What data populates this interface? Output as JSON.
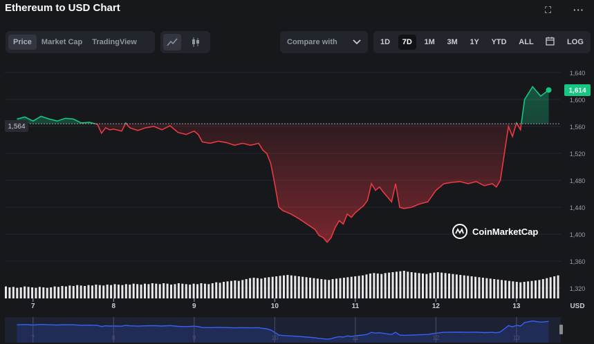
{
  "header": {
    "title": "Ethereum to USD Chart"
  },
  "toolbar": {
    "view_tabs": [
      {
        "label": "Price",
        "active": true
      },
      {
        "label": "Market Cap",
        "active": false
      },
      {
        "label": "TradingView",
        "active": false
      }
    ],
    "chart_type_icons": [
      "line-chart-icon",
      "candlestick-icon"
    ],
    "compare_label": "Compare with",
    "ranges": [
      {
        "label": "1D",
        "active": false
      },
      {
        "label": "7D",
        "active": true
      },
      {
        "label": "1M",
        "active": false
      },
      {
        "label": "3M",
        "active": false
      },
      {
        "label": "1Y",
        "active": false
      },
      {
        "label": "YTD",
        "active": false
      },
      {
        "label": "ALL",
        "active": false
      }
    ],
    "log_label": "LOG",
    "icons": [
      "calendar-icon",
      "fullscreen-icon",
      "more-icon"
    ]
  },
  "watermark": "CoinMarketCap",
  "colors": {
    "up": "#16c784",
    "down": "#ea3943",
    "background": "#17181c",
    "volume": "#ffffff",
    "navigator": "#3861fb"
  },
  "chart_data": {
    "type": "line",
    "title": "Ethereum to USD Chart",
    "xlabel": "",
    "ylabel": "USD",
    "x_ticks": [
      "7",
      "8",
      "9",
      "10",
      "11",
      "12",
      "13"
    ],
    "y_ticks": [
      "1,320",
      "1,360",
      "1,400",
      "1,440",
      "1,480",
      "1,520",
      "1,560",
      "1,600",
      "1,640"
    ],
    "ylim": [
      1320,
      1640
    ],
    "baseline": 1564,
    "baseline_label": "1,564",
    "current_price": 1614,
    "current_label": "1,614",
    "unit_label": "USD",
    "grid": true,
    "series": [
      {
        "x": [
          6.8,
          6.9,
          7.0,
          7.1,
          7.2,
          7.3,
          7.4,
          7.5,
          7.6,
          7.7,
          7.8,
          7.85,
          7.9,
          7.95,
          8.0,
          8.1,
          8.15,
          8.2,
          8.3,
          8.4,
          8.5,
          8.6,
          8.7,
          8.8,
          8.9,
          9.0,
          9.05,
          9.1,
          9.2,
          9.3,
          9.4,
          9.5,
          9.6,
          9.7,
          9.8,
          9.85,
          9.9,
          9.95,
          10.0,
          10.05,
          10.1,
          10.2,
          10.3,
          10.4,
          10.5,
          10.55,
          10.6,
          10.65,
          10.7,
          10.75,
          10.8,
          10.85,
          10.9,
          10.95,
          11.0,
          11.05,
          11.1,
          11.15,
          11.2,
          11.25,
          11.3,
          11.35,
          11.4,
          11.45,
          11.5,
          11.55,
          11.6,
          11.7,
          11.8,
          11.9,
          12.0,
          12.1,
          12.2,
          12.3,
          12.4,
          12.5,
          12.6,
          12.7,
          12.75,
          12.8,
          12.85,
          12.9,
          12.95,
          13.0,
          13.05,
          13.1,
          13.2,
          13.3,
          13.4
        ],
        "y": [
          1571,
          1574,
          1568,
          1575,
          1571,
          1568,
          1572,
          1571,
          1565,
          1566,
          1563,
          1550,
          1558,
          1555,
          1556,
          1553,
          1565,
          1558,
          1554,
          1558,
          1560,
          1555,
          1561,
          1551,
          1548,
          1553,
          1548,
          1537,
          1535,
          1538,
          1536,
          1532,
          1535,
          1532,
          1535,
          1525,
          1520,
          1505,
          1475,
          1440,
          1435,
          1430,
          1423,
          1415,
          1407,
          1398,
          1395,
          1388,
          1395,
          1410,
          1420,
          1415,
          1430,
          1425,
          1432,
          1437,
          1442,
          1450,
          1475,
          1465,
          1470,
          1462,
          1455,
          1448,
          1475,
          1440,
          1438,
          1440,
          1445,
          1448,
          1465,
          1475,
          1477,
          1478,
          1475,
          1478,
          1472,
          1475,
          1470,
          1480,
          1520,
          1560,
          1545,
          1565,
          1555,
          1600,
          1619,
          1605,
          1614
        ]
      }
    ],
    "volume": [
      26,
      24,
      25,
      23,
      24,
      26,
      25,
      24,
      23,
      25,
      24,
      23,
      24,
      26,
      25,
      27,
      26,
      28,
      27,
      29,
      28,
      27,
      29,
      28,
      30,
      29,
      28,
      30,
      29,
      31,
      30,
      29,
      31,
      30,
      32,
      31,
      30,
      32,
      31,
      33,
      32,
      31,
      33,
      32,
      30,
      31,
      33,
      32,
      31,
      30,
      32,
      31,
      33,
      32,
      31,
      33,
      35,
      34,
      36,
      37,
      38,
      39,
      38,
      40,
      42,
      44,
      45,
      44,
      43,
      45,
      46,
      47,
      48,
      49,
      50,
      51,
      50,
      49,
      48,
      47,
      46,
      45,
      44,
      43,
      42,
      41,
      40,
      42,
      43,
      44,
      45,
      46,
      47,
      48,
      49,
      50,
      52,
      54,
      55,
      54,
      53,
      55,
      56,
      57,
      58,
      59,
      60,
      58,
      57,
      56,
      55,
      54,
      53,
      55,
      56,
      57,
      56,
      55,
      54,
      53,
      52,
      51,
      50,
      49,
      48,
      47,
      46,
      45,
      44,
      43,
      42,
      41,
      40,
      39,
      38,
      37,
      36,
      35,
      36,
      37,
      38,
      39,
      40,
      42,
      44,
      46,
      48,
      50
    ]
  }
}
